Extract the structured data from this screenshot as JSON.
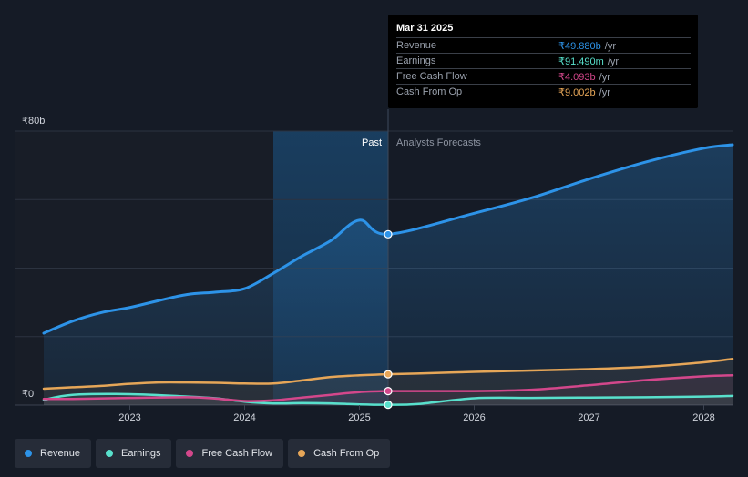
{
  "chart_data": {
    "type": "area",
    "currency": "₹",
    "y_axis_labels": {
      "top": "₹80b",
      "bottom": "₹0"
    },
    "ylim": [
      0,
      80
    ],
    "xlim": [
      2022.25,
      2028.25
    ],
    "x_ticks": [
      2023,
      2024,
      2025,
      2026,
      2027,
      2028
    ],
    "x_tick_labels": [
      "2023",
      "2024",
      "2025",
      "2026",
      "2027",
      "2028"
    ],
    "past_label": "Past",
    "forecast_label": "Analysts Forecasts",
    "past_highlight_start": 2024.25,
    "divider_x": 2025.25,
    "series": [
      {
        "name": "Revenue",
        "color": "#2d93e8",
        "points": [
          [
            2022.25,
            21
          ],
          [
            2022.5,
            24.5
          ],
          [
            2022.75,
            27
          ],
          [
            2023.0,
            28.5
          ],
          [
            2023.25,
            30.5
          ],
          [
            2023.5,
            32.3
          ],
          [
            2023.75,
            33
          ],
          [
            2024.0,
            34
          ],
          [
            2024.25,
            38.5
          ],
          [
            2024.5,
            43.5
          ],
          [
            2024.75,
            48
          ],
          [
            2025.0,
            54
          ],
          [
            2025.25,
            49.88
          ],
          [
            2026.0,
            56
          ],
          [
            2026.5,
            60.5
          ],
          [
            2027.0,
            66
          ],
          [
            2027.5,
            71
          ],
          [
            2028.0,
            75
          ],
          [
            2028.25,
            76
          ]
        ],
        "note_divider_value": 49.88
      },
      {
        "name": "Earnings",
        "color": "#58e0cc",
        "points": [
          [
            2022.25,
            1.5
          ],
          [
            2022.5,
            3
          ],
          [
            2023.0,
            3.2
          ],
          [
            2023.5,
            2.5
          ],
          [
            2023.75,
            2
          ],
          [
            2024.0,
            1
          ],
          [
            2024.25,
            0.5
          ],
          [
            2024.5,
            0.6
          ],
          [
            2024.75,
            0.5
          ],
          [
            2025.0,
            0.2
          ],
          [
            2025.25,
            0.09149
          ],
          [
            2025.5,
            0.3
          ],
          [
            2026.0,
            2
          ],
          [
            2026.5,
            2.1
          ],
          [
            2027.0,
            2.2
          ],
          [
            2027.5,
            2.3
          ],
          [
            2028.0,
            2.5
          ],
          [
            2028.25,
            2.7
          ]
        ]
      },
      {
        "name": "Free Cash Flow",
        "color": "#d3478b",
        "points": [
          [
            2022.25,
            1.8
          ],
          [
            2022.5,
            1.8
          ],
          [
            2023.0,
            2.1
          ],
          [
            2023.5,
            2.3
          ],
          [
            2023.75,
            1.9
          ],
          [
            2024.0,
            1.2
          ],
          [
            2024.25,
            1.4
          ],
          [
            2024.5,
            2.2
          ],
          [
            2024.75,
            3
          ],
          [
            2025.0,
            3.8
          ],
          [
            2025.25,
            4.093
          ],
          [
            2026.0,
            4.1
          ],
          [
            2026.5,
            4.5
          ],
          [
            2027.0,
            5.8
          ],
          [
            2027.5,
            7.3
          ],
          [
            2028.0,
            8.4
          ],
          [
            2028.25,
            8.7
          ]
        ]
      },
      {
        "name": "Cash From Op",
        "color": "#e6a658",
        "points": [
          [
            2022.25,
            4.8
          ],
          [
            2022.5,
            5.2
          ],
          [
            2022.75,
            5.6
          ],
          [
            2023.0,
            6.2
          ],
          [
            2023.25,
            6.6
          ],
          [
            2023.5,
            6.6
          ],
          [
            2023.75,
            6.5
          ],
          [
            2024.0,
            6.3
          ],
          [
            2024.25,
            6.3
          ],
          [
            2024.5,
            7.2
          ],
          [
            2024.75,
            8.2
          ],
          [
            2025.0,
            8.7
          ],
          [
            2025.25,
            9.002
          ],
          [
            2025.5,
            9.2
          ],
          [
            2026.0,
            9.7
          ],
          [
            2026.5,
            10.1
          ],
          [
            2027.0,
            10.5
          ],
          [
            2027.5,
            11.2
          ],
          [
            2028.0,
            12.5
          ],
          [
            2028.25,
            13.5
          ]
        ]
      }
    ]
  },
  "tooltip": {
    "date": "Mar 31 2025",
    "rows": [
      {
        "label": "Revenue",
        "value": "₹49.880b",
        "unit": "/yr",
        "color": "#2d93e8"
      },
      {
        "label": "Earnings",
        "value": "₹91.490m",
        "unit": "/yr",
        "color": "#58e0cc"
      },
      {
        "label": "Free Cash Flow",
        "value": "₹4.093b",
        "unit": "/yr",
        "color": "#d3478b"
      },
      {
        "label": "Cash From Op",
        "value": "₹9.002b",
        "unit": "/yr",
        "color": "#e6a658"
      }
    ]
  },
  "legend": [
    {
      "label": "Revenue",
      "color": "#2d93e8"
    },
    {
      "label": "Earnings",
      "color": "#58e0cc"
    },
    {
      "label": "Free Cash Flow",
      "color": "#d3478b"
    },
    {
      "label": "Cash From Op",
      "color": "#e6a658"
    }
  ]
}
